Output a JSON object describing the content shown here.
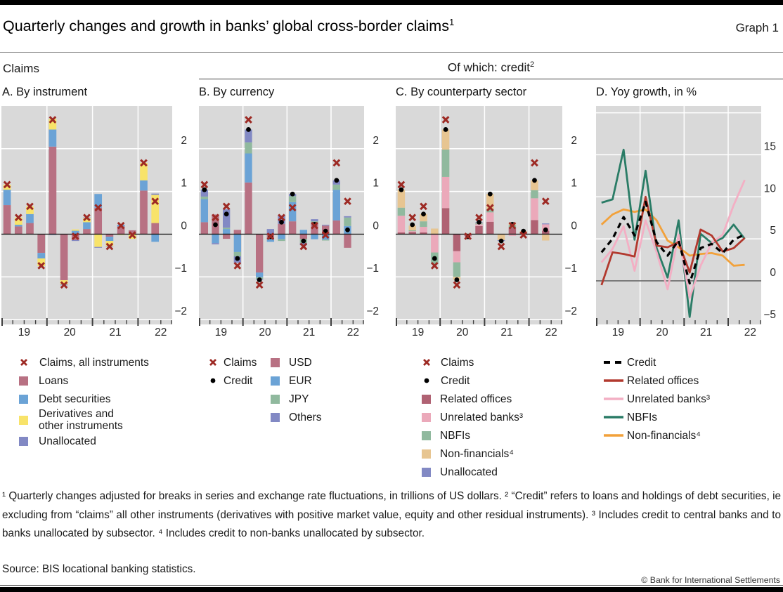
{
  "page": {
    "title": "Quarterly changes and growth in banks’ global cross-border claims",
    "title_superscript": "1",
    "graph_label": "Graph 1",
    "group_left": "Claims",
    "group_right": "Of which: credit",
    "group_right_superscript": "2"
  },
  "colors": {
    "plot_bg": "#d9d9d9",
    "grid": "#ffffff",
    "zero_line_bars": "#1a1a1a",
    "zero_line_lines": "#4d4d4d",
    "axis_text": "#2b2b2b",
    "claims_x_marker": "#9d2a24",
    "credit_dot_marker": "#000000",
    "loans_usd": "#b87183",
    "debt_eur": "#6ba3d6",
    "derivatives_yellow": "#f8e36a",
    "unallocated_others": "#8289c4",
    "jpy_nbfi_green": "#90b99e",
    "related_offices": "#b06273",
    "unrelated_banks": "#eba9ba",
    "non_financials": "#e7c591",
    "line_credit": "#000000",
    "line_related": "#b2392e",
    "line_unrelated": "#f3afc4",
    "line_nbfis": "#2a7c66",
    "line_nonfin": "#f2a13a"
  },
  "chart_data": [
    {
      "id": "A",
      "title": "A. By instrument",
      "type": "bar",
      "stacked": true,
      "unit": "Quarterly changes, trillions of US dollars",
      "quarters": [
        "2019-Q1",
        "2019-Q2",
        "2019-Q3",
        "2019-Q4",
        "2020-Q1",
        "2020-Q2",
        "2020-Q3",
        "2020-Q4",
        "2021-Q1",
        "2021-Q2",
        "2021-Q3",
        "2021-Q4",
        "2022-Q1",
        "2022-Q2"
      ],
      "x_tick_labels": [
        "19",
        "20",
        "21",
        "22"
      ],
      "ylim": [
        -2,
        3
      ],
      "yticks": [
        2,
        1,
        0,
        -1,
        -2
      ],
      "series": [
        {
          "name": "Loans",
          "color": "#b87183",
          "values": [
            0.68,
            0.18,
            0.26,
            -0.44,
            2.05,
            -1.08,
            -0.14,
            0.12,
            0.62,
            -0.06,
            0.18,
            0.09,
            1.02,
            0.26
          ]
        },
        {
          "name": "Debt securities",
          "color": "#6ba3d6",
          "values": [
            0.36,
            0.04,
            0.21,
            -0.13,
            0.4,
            0.0,
            0.08,
            0.16,
            0.32,
            -0.1,
            0.04,
            0.0,
            0.24,
            -0.18
          ]
        },
        {
          "name": "Derivatives and other instruments",
          "color": "#f8e36a",
          "values": [
            0.12,
            0.17,
            0.18,
            -0.18,
            0.25,
            -0.1,
            0.03,
            0.1,
            -0.3,
            -0.12,
            -0.02,
            -0.11,
            0.41,
            0.66
          ]
        },
        {
          "name": "Unallocated",
          "color": "#8289c4",
          "values": [
            0,
            0,
            0,
            0,
            -0.02,
            -0.02,
            -0.02,
            0.01,
            -0.02,
            -0.01,
            0,
            0,
            0,
            0.03
          ]
        }
      ],
      "markers": [
        {
          "name": "Claims, all instruments",
          "style": "x",
          "color": "#9d2a24",
          "values": [
            1.16,
            0.39,
            0.65,
            -0.74,
            2.68,
            -1.19,
            -0.05,
            0.39,
            0.62,
            -0.29,
            0.2,
            -0.02,
            1.67,
            0.77
          ]
        }
      ]
    },
    {
      "id": "B",
      "title": "B. By currency",
      "type": "bar",
      "stacked": true,
      "unit": "Quarterly changes in credit, trillions of US dollars",
      "quarters": [
        "2019-Q1",
        "2019-Q2",
        "2019-Q3",
        "2019-Q4",
        "2020-Q1",
        "2020-Q2",
        "2020-Q3",
        "2020-Q4",
        "2021-Q1",
        "2021-Q2",
        "2021-Q3",
        "2021-Q4",
        "2022-Q1",
        "2022-Q2"
      ],
      "x_tick_labels": [
        "19",
        "20",
        "21",
        "22"
      ],
      "ylim": [
        -2,
        3
      ],
      "yticks": [
        2,
        1,
        0,
        -1,
        -2
      ],
      "series": [
        {
          "name": "USD",
          "color": "#b87183",
          "values": [
            0.28,
            0.46,
            -0.11,
            0.1,
            1.21,
            -0.9,
            -0.12,
            0.24,
            0.3,
            -0.11,
            0.25,
            0.2,
            0.32,
            -0.32
          ]
        },
        {
          "name": "EUR",
          "color": "#6ba3d6",
          "values": [
            0.54,
            -0.21,
            0.12,
            -0.42,
            0.68,
            -0.11,
            -0.06,
            -0.12,
            0.45,
            0.1,
            -0.12,
            -0.13,
            0.72,
            0.19
          ]
        },
        {
          "name": "JPY",
          "color": "#90b99e",
          "values": [
            0.06,
            0.0,
            0.03,
            -0.1,
            0.26,
            -0.04,
            0.0,
            -0.04,
            0.14,
            -0.1,
            0.05,
            -0.02,
            0.12,
            0.2
          ]
        },
        {
          "name": "Others",
          "color": "#8289c4",
          "values": [
            0.16,
            -0.03,
            0.43,
            -0.15,
            0.3,
            -0.02,
            0.12,
            0.2,
            0.05,
            -0.05,
            0.05,
            0.02,
            0.1,
            0.03
          ]
        }
      ],
      "markers": [
        {
          "name": "Credit",
          "style": "dot",
          "color": "#000000",
          "values": [
            1.04,
            0.22,
            0.47,
            -0.57,
            2.45,
            -1.07,
            -0.06,
            0.28,
            0.94,
            -0.16,
            0.23,
            0.07,
            1.26,
            0.1
          ]
        },
        {
          "name": "Claims",
          "style": "x",
          "color": "#9d2a24",
          "values": [
            1.16,
            0.39,
            0.65,
            -0.74,
            2.68,
            -1.19,
            -0.05,
            0.39,
            0.62,
            -0.29,
            0.2,
            -0.02,
            1.67,
            0.77
          ]
        }
      ]
    },
    {
      "id": "C",
      "title": "C. By counterparty sector",
      "type": "bar",
      "stacked": true,
      "unit": "Quarterly changes in credit, trillions of US dollars",
      "quarters": [
        "2019-Q1",
        "2019-Q2",
        "2019-Q3",
        "2019-Q4",
        "2020-Q1",
        "2020-Q2",
        "2020-Q3",
        "2020-Q4",
        "2021-Q1",
        "2021-Q2",
        "2021-Q3",
        "2021-Q4",
        "2022-Q1",
        "2022-Q2"
      ],
      "x_tick_labels": [
        "19",
        "20",
        "21",
        "22"
      ],
      "ylim": [
        -2,
        3
      ],
      "yticks": [
        2,
        1,
        0,
        -1,
        -2
      ],
      "series": [
        {
          "name": "Related offices",
          "color": "#b06273",
          "values": [
            0.04,
            0.05,
            0.04,
            0.0,
            0.61,
            -0.4,
            -0.04,
            0.19,
            0.29,
            -0.01,
            0.14,
            0.03,
            0.33,
            0.08
          ]
        },
        {
          "name": "Unrelated banks³",
          "color": "#eba9ba",
          "values": [
            0.39,
            0.02,
            0.13,
            -0.43,
            0.73,
            -0.26,
            -0.03,
            0.04,
            0.22,
            0.0,
            -0.04,
            0.0,
            0.51,
            0.15
          ]
        },
        {
          "name": "NBFIs",
          "color": "#90b99e",
          "values": [
            0.19,
            0.02,
            0.13,
            -0.27,
            0.64,
            -0.34,
            0.0,
            0.02,
            0.08,
            0.0,
            0.07,
            0.0,
            0.19,
            0.0
          ]
        },
        {
          "name": "Non-financials⁴",
          "color": "#e7c591",
          "values": [
            0.42,
            0.11,
            0.17,
            0.13,
            0.47,
            -0.07,
            0.01,
            0.01,
            0.35,
            -0.13,
            0.06,
            0.04,
            0.23,
            -0.15
          ]
        },
        {
          "name": "Unallocated",
          "color": "#8289c4",
          "values": [
            0,
            0,
            0,
            0,
            0,
            0,
            0,
            0.02,
            0,
            -0.02,
            0,
            0,
            0,
            0.02
          ]
        }
      ],
      "markers": [
        {
          "name": "Credit",
          "style": "dot",
          "color": "#000000",
          "values": [
            1.04,
            0.22,
            0.47,
            -0.57,
            2.45,
            -1.07,
            -0.06,
            0.28,
            0.94,
            -0.16,
            0.23,
            0.07,
            1.26,
            0.1
          ]
        },
        {
          "name": "Claims",
          "style": "x",
          "color": "#9d2a24",
          "values": [
            1.16,
            0.39,
            0.65,
            -0.74,
            2.68,
            -1.19,
            -0.05,
            0.39,
            0.62,
            -0.29,
            0.2,
            -0.02,
            1.67,
            0.77
          ]
        }
      ]
    },
    {
      "id": "D",
      "title": "D. Yoy growth, in %",
      "type": "line",
      "unit": "Year-on-year growth, per cent",
      "quarters": [
        "2019-Q1",
        "2019-Q2",
        "2019-Q3",
        "2019-Q4",
        "2020-Q1",
        "2020-Q2",
        "2020-Q3",
        "2020-Q4",
        "2021-Q1",
        "2021-Q2",
        "2021-Q3",
        "2021-Q4",
        "2022-Q1",
        "2022-Q2"
      ],
      "x_tick_labels": [
        "19",
        "20",
        "21",
        "22"
      ],
      "ylim": [
        -4.6,
        20.8
      ],
      "yticks": [
        15,
        10,
        5,
        0,
        -5
      ],
      "extra_gridlines": [
        20
      ],
      "series": [
        {
          "name": "Credit",
          "color": "#000000",
          "dash": true,
          "values": [
            3.4,
            5.0,
            7.6,
            5.4,
            9.4,
            4.6,
            3.0,
            4.8,
            -0.3,
            3.9,
            4.4,
            3.3,
            4.9,
            5.5
          ]
        },
        {
          "name": "Related offices",
          "color": "#b2392e",
          "dash": false,
          "values": [
            -0.5,
            3.4,
            3.2,
            2.9,
            10.0,
            4.2,
            4.0,
            4.6,
            1.0,
            6.1,
            5.4,
            3.5,
            3.9,
            5.1
          ]
        },
        {
          "name": "Unrelated banks³",
          "color": "#f3afc4",
          "dash": false,
          "values": [
            2.2,
            3.8,
            6.5,
            1.2,
            7.2,
            3.4,
            -1.0,
            5.5,
            -2.0,
            1.8,
            4.5,
            5.5,
            9.0,
            12.0
          ]
        },
        {
          "name": "NBFIs",
          "color": "#2a7c66",
          "dash": false,
          "values": [
            9.3,
            9.7,
            15.6,
            4.9,
            13.1,
            3.9,
            0.4,
            7.2,
            -4.3,
            5.6,
            4.5,
            5.1,
            6.7,
            5.0
          ]
        },
        {
          "name": "Non-financials⁴",
          "color": "#f2a13a",
          "dash": false,
          "values": [
            6.7,
            7.9,
            8.5,
            8.2,
            8.5,
            7.2,
            4.8,
            4.0,
            3.0,
            3.2,
            3.3,
            3.0,
            1.8,
            1.9
          ]
        }
      ]
    }
  ],
  "legends": [
    {
      "position": "A",
      "items": [
        {
          "type": "x",
          "color": "#9d2a24",
          "label": "Claims, all instruments"
        },
        {
          "type": "sq",
          "color": "#b87183",
          "label": "Loans"
        },
        {
          "type": "sq",
          "color": "#6ba3d6",
          "label": "Debt securities"
        },
        {
          "type": "sq",
          "color": "#f8e36a",
          "label": "Derivatives and\nother instruments"
        },
        {
          "type": "sq",
          "color": "#8289c4",
          "label": "Unallocated"
        }
      ]
    },
    {
      "position": "B1",
      "items": [
        {
          "type": "x",
          "color": "#9d2a24",
          "label": "Claims"
        },
        {
          "type": "dot",
          "color": "#000000",
          "label": "Credit"
        }
      ]
    },
    {
      "position": "B2",
      "items": [
        {
          "type": "sq",
          "color": "#b87183",
          "label": "USD"
        },
        {
          "type": "sq",
          "color": "#6ba3d6",
          "label": "EUR"
        },
        {
          "type": "sq",
          "color": "#90b99e",
          "label": "JPY"
        },
        {
          "type": "sq",
          "color": "#8289c4",
          "label": "Others"
        }
      ]
    },
    {
      "position": "C",
      "items": [
        {
          "type": "x",
          "color": "#9d2a24",
          "label": "Claims"
        },
        {
          "type": "dot",
          "color": "#000000",
          "label": "Credit"
        },
        {
          "type": "sq",
          "color": "#b06273",
          "label": "Related offices"
        },
        {
          "type": "sq",
          "color": "#eba9ba",
          "label": "Unrelated banks³"
        },
        {
          "type": "sq",
          "color": "#90b99e",
          "label": "NBFIs"
        },
        {
          "type": "sq",
          "color": "#e7c591",
          "label": "Non-financials⁴"
        },
        {
          "type": "sq",
          "color": "#8289c4",
          "label": "Unallocated"
        }
      ]
    },
    {
      "position": "D",
      "items": [
        {
          "type": "dash",
          "color": "#000000",
          "label": "Credit"
        },
        {
          "type": "line",
          "color": "#b2392e",
          "label": "Related offices"
        },
        {
          "type": "line",
          "color": "#f3afc4",
          "label": "Unrelated banks³"
        },
        {
          "type": "line",
          "color": "#2a7c66",
          "label": "NBFIs"
        },
        {
          "type": "line",
          "color": "#f2a13a",
          "label": "Non-financials⁴"
        }
      ]
    }
  ],
  "footnotes": {
    "text": "¹  Quarterly changes adjusted for breaks in series and exchange rate fluctuations, in trillions of US dollars.   ²  “Credit” refers to loans and holdings of debt securities, ie excluding from “claims” all other instruments (derivatives with positive market value, equity and other residual instruments).   ³  Includes credit to central banks and to banks unallocated by subsector.   ⁴  Includes credit to non-banks unallocated by subsector.",
    "source": "Source: BIS locational banking statistics.",
    "copyright": "© Bank for International Settlements"
  }
}
